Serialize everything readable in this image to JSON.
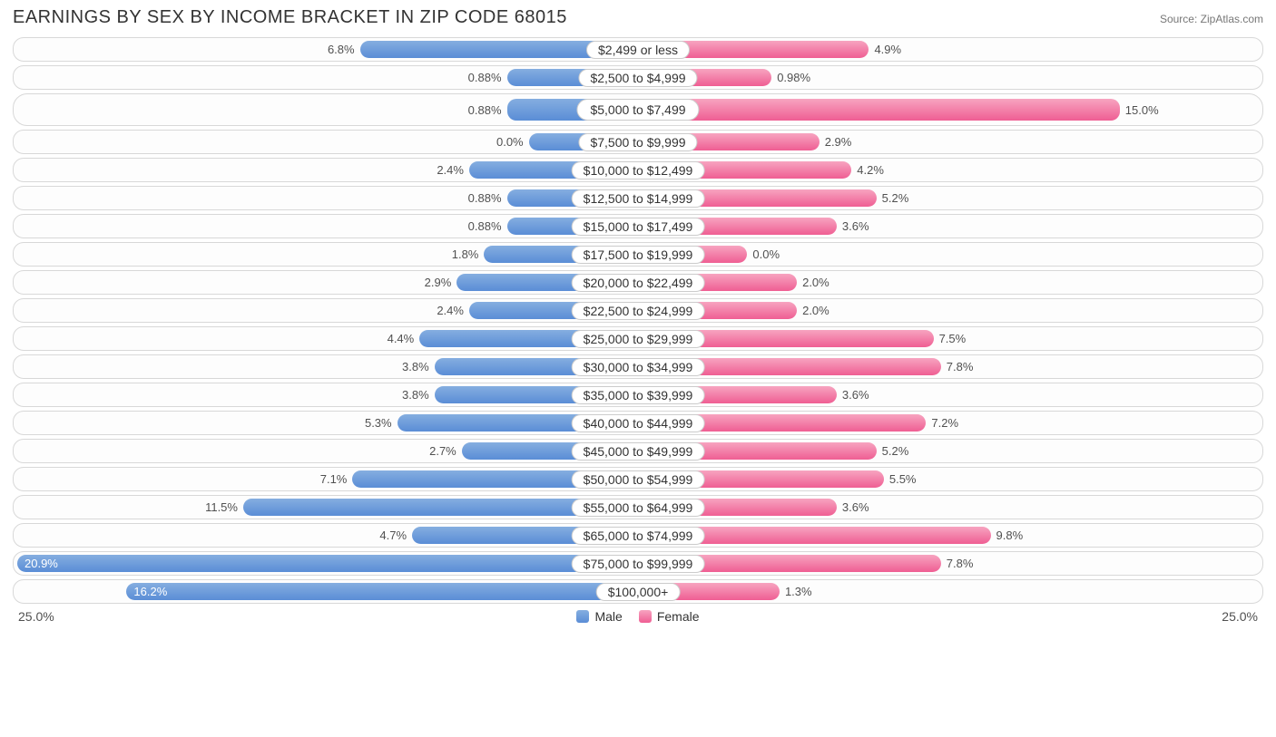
{
  "title": "EARNINGS BY SEX BY INCOME BRACKET IN ZIP CODE 68015",
  "source": "Source: ZipAtlas.com",
  "axis_max_label": "25.0%",
  "axis_max_value": 25.0,
  "legend": {
    "male": "Male",
    "female": "Female"
  },
  "colors": {
    "male_bar_start": "#85aee0",
    "male_bar_end": "#5a8dd6",
    "female_bar_start": "#f7a4c0",
    "female_bar_end": "#ef5e93",
    "inside_text": "#ffffff",
    "outside_text": "#505050",
    "row_border": "#d8d8d8",
    "label_border": "#cccccc",
    "title_color": "#333333",
    "source_color": "#777777",
    "background": "#ffffff",
    "center_min_pct": 4.4
  },
  "rows": [
    {
      "label": "$2,499 or less",
      "male": 6.8,
      "female": 4.9,
      "tall": false,
      "male_inside": false,
      "female_inside": false
    },
    {
      "label": "$2,500 to $4,999",
      "male": 0.88,
      "female": 0.98,
      "tall": false,
      "male_inside": false,
      "female_inside": false
    },
    {
      "label": "$5,000 to $7,499",
      "male": 0.88,
      "female": 15.0,
      "tall": true,
      "male_inside": false,
      "female_inside": false
    },
    {
      "label": "$7,500 to $9,999",
      "male": 0.0,
      "female": 2.9,
      "tall": false,
      "male_inside": false,
      "female_inside": false
    },
    {
      "label": "$10,000 to $12,499",
      "male": 2.4,
      "female": 4.2,
      "tall": false,
      "male_inside": false,
      "female_inside": false
    },
    {
      "label": "$12,500 to $14,999",
      "male": 0.88,
      "female": 5.2,
      "tall": false,
      "male_inside": false,
      "female_inside": false
    },
    {
      "label": "$15,000 to $17,499",
      "male": 0.88,
      "female": 3.6,
      "tall": false,
      "male_inside": false,
      "female_inside": false
    },
    {
      "label": "$17,500 to $19,999",
      "male": 1.8,
      "female": 0.0,
      "tall": false,
      "male_inside": false,
      "female_inside": false
    },
    {
      "label": "$20,000 to $22,499",
      "male": 2.9,
      "female": 2.0,
      "tall": false,
      "male_inside": false,
      "female_inside": false
    },
    {
      "label": "$22,500 to $24,999",
      "male": 2.4,
      "female": 2.0,
      "tall": false,
      "male_inside": false,
      "female_inside": false
    },
    {
      "label": "$25,000 to $29,999",
      "male": 4.4,
      "female": 7.5,
      "tall": false,
      "male_inside": false,
      "female_inside": false
    },
    {
      "label": "$30,000 to $34,999",
      "male": 3.8,
      "female": 7.8,
      "tall": false,
      "male_inside": false,
      "female_inside": false
    },
    {
      "label": "$35,000 to $39,999",
      "male": 3.8,
      "female": 3.6,
      "tall": false,
      "male_inside": false,
      "female_inside": false
    },
    {
      "label": "$40,000 to $44,999",
      "male": 5.3,
      "female": 7.2,
      "tall": false,
      "male_inside": false,
      "female_inside": false
    },
    {
      "label": "$45,000 to $49,999",
      "male": 2.7,
      "female": 5.2,
      "tall": false,
      "male_inside": false,
      "female_inside": false
    },
    {
      "label": "$50,000 to $54,999",
      "male": 7.1,
      "female": 5.5,
      "tall": false,
      "male_inside": false,
      "female_inside": false
    },
    {
      "label": "$55,000 to $64,999",
      "male": 11.5,
      "female": 3.6,
      "tall": false,
      "male_inside": false,
      "female_inside": false
    },
    {
      "label": "$65,000 to $74,999",
      "male": 4.7,
      "female": 9.8,
      "tall": false,
      "male_inside": false,
      "female_inside": false
    },
    {
      "label": "$75,000 to $99,999",
      "male": 20.9,
      "female": 7.8,
      "tall": false,
      "male_inside": true,
      "female_inside": false
    },
    {
      "label": "$100,000+",
      "male": 16.2,
      "female": 1.3,
      "tall": false,
      "male_inside": true,
      "female_inside": false
    }
  ]
}
